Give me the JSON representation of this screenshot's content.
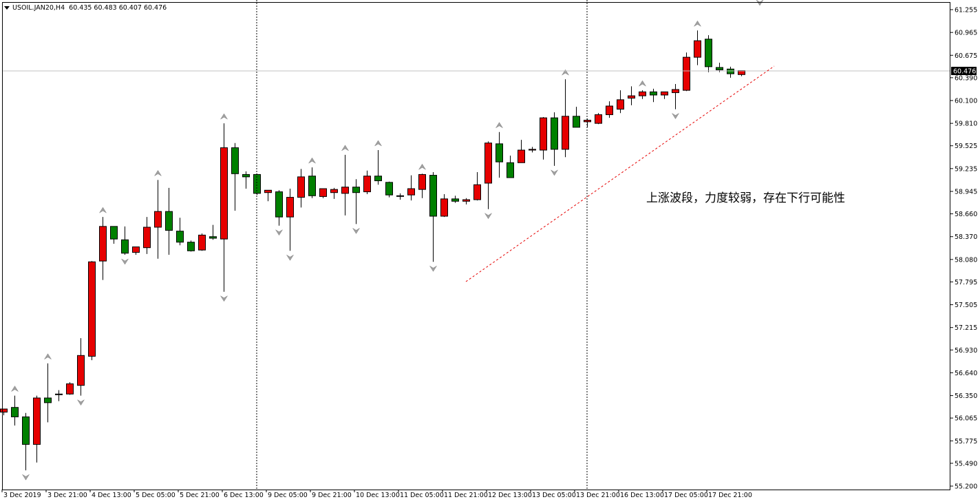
{
  "header": {
    "symbol": "USOIL.JAN20,H4",
    "ohlc": "60.435 60.483 60.407 60.476"
  },
  "annotation": "上涨波段，力度较弱，存在下行可能性",
  "colors": {
    "bull": "#e60000",
    "bear": "#008000",
    "price_line": "#c0c0c0",
    "trend_line": "#e60000",
    "fractal": "#a0a0a0"
  },
  "chart_data": {
    "type": "candlestick",
    "title": "",
    "xlabel": "",
    "ylabel": "",
    "ylim": [
      55.2,
      61.25
    ],
    "grid": false,
    "y_ticks": [
      "61.255",
      "60.965",
      "60.675",
      "60.390",
      "60.100",
      "59.810",
      "59.525",
      "59.235",
      "58.945",
      "58.660",
      "58.370",
      "58.080",
      "57.795",
      "57.505",
      "57.215",
      "56.930",
      "56.640",
      "56.350",
      "56.065",
      "55.775",
      "55.490",
      "55.200"
    ],
    "x_labels": [
      "3 Dec 2019",
      "3 Dec 21:00",
      "4 Dec 13:00",
      "5 Dec 05:00",
      "5 Dec 21:00",
      "6 Dec 13:00",
      "9 Dec 05:00",
      "9 Dec 21:00",
      "10 Dec 13:00",
      "11 Dec 05:00",
      "11 Dec 21:00",
      "12 Dec 13:00",
      "13 Dec 05:00",
      "13 Dec 21:00",
      "16 Dec 13:00",
      "17 Dec 05:00",
      "17 Dec 21:00"
    ],
    "current_price": "60.476",
    "candles": [
      {
        "o": 56.14,
        "h": 56.18,
        "l": 56.1,
        "c": 56.18
      },
      {
        "o": 56.2,
        "h": 56.35,
        "l": 55.97,
        "c": 56.08
      },
      {
        "o": 56.08,
        "h": 56.13,
        "l": 55.4,
        "c": 55.73
      },
      {
        "o": 55.73,
        "h": 56.35,
        "l": 55.5,
        "c": 56.32
      },
      {
        "o": 56.32,
        "h": 56.76,
        "l": 56.01,
        "c": 56.26
      },
      {
        "o": 56.37,
        "h": 56.42,
        "l": 56.28,
        "c": 56.37
      },
      {
        "o": 56.37,
        "h": 56.52,
        "l": 56.36,
        "c": 56.5
      },
      {
        "o": 56.48,
        "h": 57.08,
        "l": 56.35,
        "c": 56.86
      },
      {
        "o": 56.85,
        "h": 58.06,
        "l": 56.8,
        "c": 58.05
      },
      {
        "o": 58.06,
        "h": 58.62,
        "l": 57.82,
        "c": 58.5
      },
      {
        "o": 58.5,
        "h": 58.49,
        "l": 58.28,
        "c": 58.34
      },
      {
        "o": 58.33,
        "h": 58.5,
        "l": 58.14,
        "c": 58.16
      },
      {
        "o": 58.17,
        "h": 58.24,
        "l": 58.14,
        "c": 58.24
      },
      {
        "o": 58.23,
        "h": 58.62,
        "l": 58.15,
        "c": 58.49
      },
      {
        "o": 58.49,
        "h": 59.09,
        "l": 58.09,
        "c": 58.69
      },
      {
        "o": 58.69,
        "h": 58.99,
        "l": 58.14,
        "c": 58.45
      },
      {
        "o": 58.44,
        "h": 58.61,
        "l": 58.26,
        "c": 58.3
      },
      {
        "o": 58.3,
        "h": 58.32,
        "l": 58.18,
        "c": 58.19
      },
      {
        "o": 58.2,
        "h": 58.41,
        "l": 58.19,
        "c": 58.39
      },
      {
        "o": 58.37,
        "h": 58.52,
        "l": 58.33,
        "c": 58.35
      },
      {
        "o": 58.34,
        "h": 59.81,
        "l": 57.67,
        "c": 59.5
      },
      {
        "o": 59.5,
        "h": 59.56,
        "l": 58.7,
        "c": 59.17
      },
      {
        "o": 59.16,
        "h": 59.2,
        "l": 58.98,
        "c": 59.13
      },
      {
        "o": 59.16,
        "h": 59.17,
        "l": 58.9,
        "c": 58.92
      },
      {
        "o": 58.93,
        "h": 58.96,
        "l": 58.82,
        "c": 58.96
      },
      {
        "o": 58.94,
        "h": 58.96,
        "l": 58.51,
        "c": 58.62
      },
      {
        "o": 58.62,
        "h": 58.98,
        "l": 58.19,
        "c": 58.87
      },
      {
        "o": 58.87,
        "h": 59.23,
        "l": 58.74,
        "c": 59.13
      },
      {
        "o": 59.14,
        "h": 59.25,
        "l": 58.86,
        "c": 58.89
      },
      {
        "o": 58.88,
        "h": 58.98,
        "l": 58.86,
        "c": 58.98
      },
      {
        "o": 58.93,
        "h": 58.99,
        "l": 58.85,
        "c": 58.97
      },
      {
        "o": 58.92,
        "h": 59.41,
        "l": 58.64,
        "c": 59.0
      },
      {
        "o": 59.0,
        "h": 59.1,
        "l": 58.53,
        "c": 58.93
      },
      {
        "o": 58.94,
        "h": 59.21,
        "l": 58.91,
        "c": 59.14
      },
      {
        "o": 59.14,
        "h": 59.47,
        "l": 59.03,
        "c": 59.08
      },
      {
        "o": 59.06,
        "h": 59.07,
        "l": 58.87,
        "c": 58.9
      },
      {
        "o": 58.89,
        "h": 58.92,
        "l": 58.84,
        "c": 58.89
      },
      {
        "o": 58.9,
        "h": 59.15,
        "l": 58.83,
        "c": 58.98
      },
      {
        "o": 58.97,
        "h": 59.17,
        "l": 58.86,
        "c": 59.16
      },
      {
        "o": 59.15,
        "h": 59.19,
        "l": 58.05,
        "c": 58.63
      },
      {
        "o": 58.63,
        "h": 58.91,
        "l": 58.62,
        "c": 58.85
      },
      {
        "o": 58.85,
        "h": 58.89,
        "l": 58.8,
        "c": 58.82
      },
      {
        "o": 58.82,
        "h": 58.86,
        "l": 58.78,
        "c": 58.84
      },
      {
        "o": 58.84,
        "h": 59.19,
        "l": 58.83,
        "c": 59.03
      },
      {
        "o": 59.05,
        "h": 59.58,
        "l": 58.72,
        "c": 59.56
      },
      {
        "o": 59.55,
        "h": 59.7,
        "l": 59.12,
        "c": 59.32
      },
      {
        "o": 59.31,
        "h": 59.4,
        "l": 59.14,
        "c": 59.12
      },
      {
        "o": 59.31,
        "h": 59.6,
        "l": 59.31,
        "c": 59.47
      },
      {
        "o": 59.47,
        "h": 59.51,
        "l": 59.44,
        "c": 59.48
      },
      {
        "o": 59.47,
        "h": 59.89,
        "l": 59.35,
        "c": 59.88
      },
      {
        "o": 59.88,
        "h": 59.95,
        "l": 59.27,
        "c": 59.48
      },
      {
        "o": 59.48,
        "h": 60.37,
        "l": 59.38,
        "c": 59.9
      },
      {
        "o": 59.9,
        "h": 60.02,
        "l": 59.78,
        "c": 59.76
      },
      {
        "o": 59.83,
        "h": 59.87,
        "l": 59.76,
        "c": 59.85
      },
      {
        "o": 59.81,
        "h": 59.94,
        "l": 59.8,
        "c": 59.92
      },
      {
        "o": 59.92,
        "h": 60.09,
        "l": 59.88,
        "c": 60.03
      },
      {
        "o": 59.99,
        "h": 60.23,
        "l": 59.94,
        "c": 60.11
      },
      {
        "o": 60.13,
        "h": 60.28,
        "l": 60.04,
        "c": 60.16
      },
      {
        "o": 60.16,
        "h": 60.23,
        "l": 60.12,
        "c": 60.21
      },
      {
        "o": 60.21,
        "h": 60.25,
        "l": 60.08,
        "c": 60.17
      },
      {
        "o": 60.17,
        "h": 60.21,
        "l": 60.12,
        "c": 60.21
      },
      {
        "o": 60.2,
        "h": 60.31,
        "l": 59.99,
        "c": 60.24
      },
      {
        "o": 60.23,
        "h": 60.71,
        "l": 60.22,
        "c": 60.65
      },
      {
        "o": 60.65,
        "h": 60.99,
        "l": 60.55,
        "c": 60.86
      },
      {
        "o": 60.88,
        "h": 60.93,
        "l": 60.46,
        "c": 60.53
      },
      {
        "o": 60.52,
        "h": 60.58,
        "l": 60.46,
        "c": 60.49
      },
      {
        "o": 60.5,
        "h": 60.53,
        "l": 60.39,
        "c": 60.44
      },
      {
        "o": 60.43,
        "h": 60.48,
        "l": 60.41,
        "c": 60.48
      }
    ],
    "fractals_up": [
      1,
      4,
      9,
      14,
      20,
      28,
      31,
      34,
      38,
      45,
      51,
      58,
      63
    ],
    "fractals_down": [
      2,
      7,
      11,
      20,
      25,
      26,
      32,
      39,
      44,
      50,
      61
    ]
  }
}
